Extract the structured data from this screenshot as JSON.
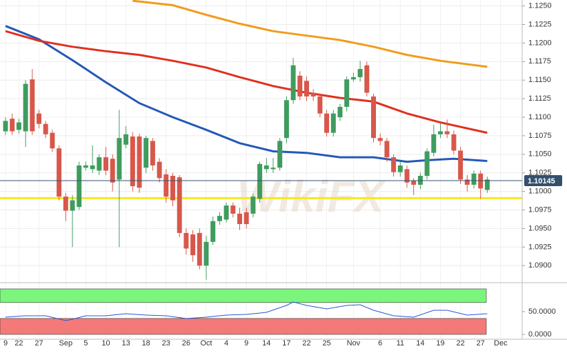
{
  "chart_data": {
    "type": "candlestick",
    "categories": [
      "9",
      null,
      "22",
      null,
      null,
      "27",
      null,
      null,
      null,
      "Sep",
      null,
      null,
      "5",
      null,
      null,
      "10",
      null,
      null,
      "13",
      null,
      null,
      "18",
      null,
      null,
      "23",
      null,
      null,
      "26",
      null,
      null,
      "Oct",
      null,
      null,
      "4",
      null,
      null,
      "9",
      null,
      null,
      "14",
      null,
      null,
      "17",
      null,
      null,
      "22",
      null,
      null,
      "25",
      null,
      null,
      null,
      "Nov",
      null,
      null,
      null,
      "6",
      null,
      null,
      "11",
      null,
      null,
      "14",
      null,
      null,
      "19",
      null,
      null,
      "22",
      null,
      null,
      "27",
      null,
      null,
      "Dec"
    ],
    "open": [
      1.1081,
      1.1098,
      1.1083,
      1.1081,
      1.1151,
      1.1105,
      1.1091,
      1.1079,
      1.1058,
      1.0993,
      1.0974,
      1.0979,
      1.1032,
      1.103,
      1.1028,
      1.1046,
      1.1044,
      1.1016,
      1.1063,
      1.1074,
      1.1074,
      1.1032,
      1.1068,
      1.104,
      1.1023,
      1.1021,
      1.1019,
      1.0944,
      1.0942,
      1.0944,
      1.09,
      1.0932,
      1.096,
      1.0962,
      1.0981,
      1.097,
      1.0972,
      1.097,
      1.099,
      1.103,
      1.103,
      1.1032,
      1.1072,
      1.1123,
      1.1156,
      1.1149,
      1.1133,
      1.1128,
      1.1105,
      1.1079,
      1.11,
      1.1114,
      1.1151,
      1.1154,
      1.117,
      1.1128,
      1.1072,
      1.1068,
      1.1046,
      1.1026,
      1.103,
      1.1014,
      1.1009,
      1.1021,
      1.1052,
      1.1077,
      1.1081,
      1.1077,
      1.1055,
      1.1016,
      1.1009,
      1.1024,
      1.1002,
      null,
      null
    ],
    "high": [
      1.11,
      1.1105,
      1.1098,
      1.115,
      1.1165,
      1.111,
      1.1095,
      1.1083,
      1.1062,
      1.0998,
      1.0995,
      1.104,
      1.104,
      1.1062,
      1.105,
      1.106,
      1.105,
      1.111,
      1.1088,
      1.108,
      1.1078,
      1.1075,
      1.1072,
      1.1045,
      1.103,
      1.1025,
      1.1022,
      1.095,
      1.0948,
      1.095,
      1.094,
      1.0966,
      1.0972,
      1.0985,
      1.0985,
      1.0978,
      1.0978,
      1.0997,
      1.104,
      1.1045,
      1.1045,
      1.1072,
      1.1128,
      1.118,
      1.1162,
      1.1155,
      1.1138,
      1.1132,
      1.111,
      1.111,
      1.1118,
      1.1155,
      1.116,
      1.1176,
      1.1175,
      1.1132,
      1.1078,
      1.1072,
      1.105,
      1.104,
      1.1035,
      1.1018,
      1.1025,
      1.1058,
      1.109,
      1.1092,
      1.1097,
      1.1082,
      1.106,
      1.1022,
      1.1028,
      1.1028,
      1.102,
      null,
      null
    ],
    "low": [
      1.1076,
      1.1076,
      1.1078,
      1.106,
      1.1076,
      1.1085,
      1.1072,
      1.1053,
      1.0988,
      1.096,
      1.0925,
      1.0975,
      1.1028,
      1.1025,
      1.1022,
      1.1022,
      1.1,
      1.0925,
      1.1058,
      1.1,
      1.0998,
      1.1025,
      1.1028,
      1.1012,
      1.0985,
      1.098,
      1.0938,
      1.0915,
      1.0905,
      1.0895,
      1.0881,
      1.0928,
      1.0955,
      1.0958,
      1.0965,
      1.0948,
      1.095,
      1.0965,
      1.0985,
      1.1025,
      1.1025,
      1.1028,
      1.1065,
      1.1118,
      1.1123,
      1.1122,
      1.1122,
      1.11,
      1.1074,
      1.1074,
      1.1095,
      1.1108,
      1.1148,
      1.1148,
      1.1128,
      1.1066,
      1.1062,
      1.104,
      1.102,
      1.102,
      1.1005,
      1.0995,
      1.1003,
      1.1016,
      1.1047,
      1.1072,
      1.1072,
      1.105,
      1.101,
      1.1,
      1.1004,
      1.099,
      1.0998,
      null,
      null
    ],
    "close": [
      1.1095,
      1.1081,
      1.1093,
      1.1145,
      1.1081,
      1.1091,
      1.1077,
      1.1058,
      1.0993,
      1.0974,
      1.0988,
      1.1035,
      1.1035,
      1.1035,
      1.1046,
      1.1028,
      1.1012,
      1.1072,
      1.1077,
      1.1007,
      1.1005,
      1.1072,
      1.1035,
      1.1018,
      1.0993,
      1.0988,
      1.0944,
      1.0923,
      1.0914,
      1.09,
      1.0932,
      1.096,
      1.0967,
      1.0981,
      1.097,
      1.0956,
      1.0956,
      1.0993,
      1.1037,
      1.1035,
      1.1032,
      1.1068,
      1.1123,
      1.117,
      1.1128,
      1.1128,
      1.1128,
      1.1105,
      1.1079,
      1.1105,
      1.1114,
      1.1151,
      1.1154,
      1.1165,
      1.1133,
      1.1072,
      1.1068,
      1.1046,
      1.1026,
      1.1035,
      1.1012,
      1.1009,
      1.1021,
      1.1054,
      1.1077,
      1.1081,
      1.1077,
      1.1055,
      1.1016,
      1.1009,
      1.1024,
      1.1004,
      1.1016,
      null,
      null
    ],
    "up_color": "#3f9c5e",
    "down_color": "#d8574b",
    "ylim": [
      1.0877,
      1.1258
    ],
    "yticks": [
      {
        "value": 1.125,
        "label": "1.1250"
      },
      {
        "value": 1.1225,
        "label": "1.1225"
      },
      {
        "value": 1.12,
        "label": "1.1200"
      },
      {
        "value": 1.1175,
        "label": "1.1175"
      },
      {
        "value": 1.115,
        "label": "1.1150"
      },
      {
        "value": 1.1125,
        "label": "1.1125"
      },
      {
        "value": 1.11,
        "label": "1.1100"
      },
      {
        "value": 1.1075,
        "label": "1.1075"
      },
      {
        "value": 1.105,
        "label": "1.1050"
      },
      {
        "value": 1.1025,
        "label": "1.1025"
      },
      {
        "value": 1.1,
        "label": "1.1000"
      },
      {
        "value": 1.0975,
        "label": "1.0975"
      },
      {
        "value": 1.095,
        "label": "1.0950"
      },
      {
        "value": 1.0925,
        "label": "1.0925"
      },
      {
        "value": 1.09,
        "label": "1.0900"
      }
    ],
    "grid": true,
    "last_price": 1.10145,
    "support": 1.0991,
    "support_color": "#f2ea1e",
    "moving_averages": [
      {
        "color": "#2457b8",
        "x": [
          0,
          5,
          10,
          15,
          20,
          25,
          30,
          35,
          40,
          45,
          50,
          55,
          60,
          63,
          67,
          72
        ],
        "values": [
          1.1223,
          1.1205,
          1.1177,
          1.1147,
          1.1119,
          1.11,
          1.1083,
          1.1065,
          1.1054,
          1.1052,
          1.1046,
          1.1046,
          1.104,
          1.1042,
          1.1044,
          1.1041
        ]
      },
      {
        "color": "#e0301e",
        "x": [
          0,
          5,
          10,
          15,
          20,
          25,
          30,
          35,
          40,
          45,
          50,
          55,
          60,
          65,
          72
        ],
        "values": [
          1.1216,
          1.1203,
          1.1195,
          1.1189,
          1.1184,
          1.1176,
          1.1167,
          1.1154,
          1.1142,
          1.1133,
          1.1126,
          1.1121,
          1.1105,
          1.1093,
          1.1079
        ]
      },
      {
        "color": "#f29b1b",
        "x": [
          19,
          25,
          30,
          35,
          40,
          45,
          50,
          55,
          60,
          65,
          72
        ],
        "values": [
          1.1257,
          1.1251,
          1.1238,
          1.1226,
          1.1216,
          1.121,
          1.1204,
          1.1195,
          1.1184,
          1.1176,
          1.1168
        ]
      }
    ],
    "watermark": "WikiFX",
    "indicator": {
      "type": "line",
      "color": "#2457d8",
      "x": [
        0,
        3,
        6,
        9,
        10,
        12,
        15,
        18,
        21,
        24,
        27,
        30,
        33,
        36,
        39,
        42,
        43,
        45,
        48,
        51,
        53,
        55,
        58,
        61,
        64,
        66,
        69,
        72
      ],
      "values": [
        37.9,
        40.9,
        40.9,
        30.3,
        33.3,
        40.9,
        40.9,
        45.5,
        42.4,
        40.9,
        34.8,
        37.9,
        42.4,
        43.9,
        48.5,
        63.6,
        71.2,
        63.6,
        56.1,
        63.6,
        65.2,
        53.0,
        40.9,
        37.9,
        53.0,
        53.0,
        42.4,
        45.5
      ],
      "ylim": [
        0,
        100
      ],
      "yticks": [
        {
          "value": 50,
          "label": "50.0000"
        },
        {
          "value": 0,
          "label": "0.0000"
        }
      ],
      "bands": [
        {
          "from": 70,
          "to": 100,
          "color": "#7cf57c"
        },
        {
          "from": 0,
          "to": 35,
          "color": "#f47a7a"
        }
      ]
    }
  }
}
